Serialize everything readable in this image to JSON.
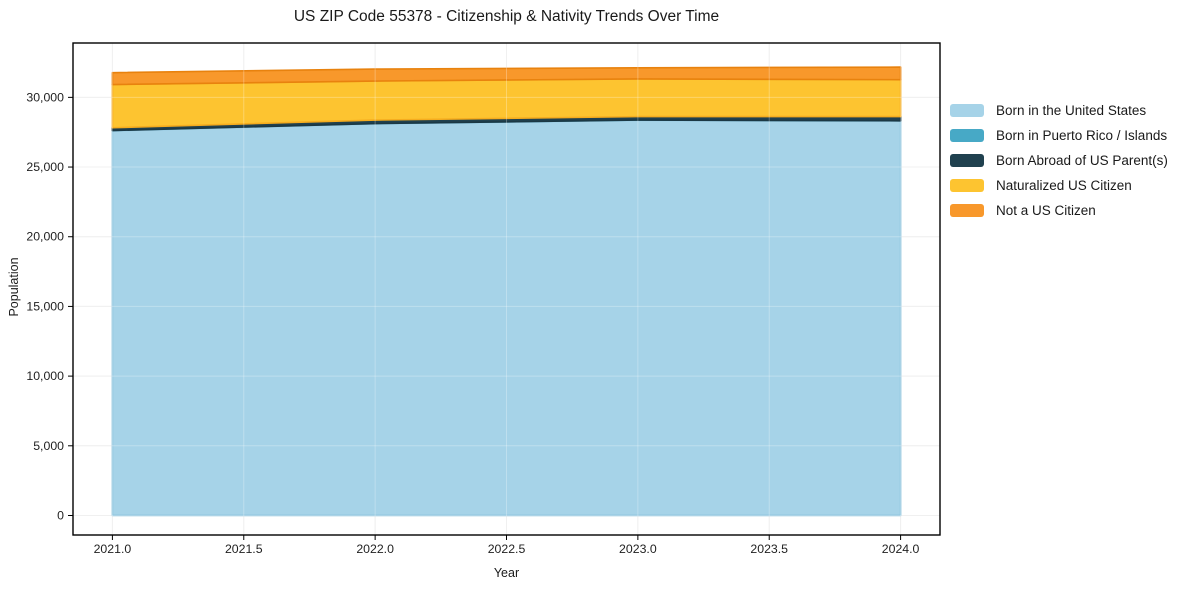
{
  "title": "US ZIP Code 55378 - Citizenship & Nativity Trends Over Time",
  "axes": {
    "xlabel": "Year",
    "ylabel": "Population"
  },
  "chart_data": {
    "type": "area",
    "stacked": true,
    "title": "US ZIP Code 55378 - Citizenship & Nativity Trends Over Time",
    "xlabel": "Year",
    "ylabel": "Population",
    "x": [
      2021,
      2022,
      2023,
      2024
    ],
    "series": [
      {
        "name": "Born in the United States",
        "color": "#a6d3e8",
        "edge_color": "#8cc3dd",
        "values": [
          27600,
          28100,
          28350,
          28300
        ]
      },
      {
        "name": "Born in Puerto Rico / Islands",
        "color": "#47a9c6",
        "edge_color": "#3f9cba",
        "values": [
          20,
          20,
          20,
          20
        ]
      },
      {
        "name": "Born Abroad of US Parent(s)",
        "color": "#20414f",
        "edge_color": "#1b3844",
        "values": [
          200,
          250,
          250,
          300
        ]
      },
      {
        "name": "Naturalized US Citizen",
        "color": "#fdc430",
        "edge_color": "#f5ac1e",
        "values": [
          3100,
          2800,
          2700,
          2650
        ]
      },
      {
        "name": "Not a US Citizen",
        "color": "#f8982b",
        "edge_color": "#e8820e",
        "values": [
          850,
          860,
          800,
          900
        ]
      }
    ],
    "x_ticks": {
      "values": [
        2021,
        2021.5,
        2022,
        2022.5,
        2023,
        2023.5,
        2024
      ],
      "labels": [
        "2021.0",
        "2021.5",
        "2022.0",
        "2022.5",
        "2023.0",
        "2023.5",
        "2024.0"
      ]
    },
    "y_ticks": {
      "values": [
        0,
        5000,
        10000,
        15000,
        20000,
        25000,
        30000
      ],
      "labels": [
        "0",
        "5,000",
        "10,000",
        "15,000",
        "20,000",
        "25,000",
        "30,000"
      ]
    },
    "xlim": [
      2020.85,
      2024.15
    ],
    "ylim": [
      -1400,
      33900
    ],
    "grid": true,
    "grid_color": "#eaeaea",
    "frame_color": "#000000",
    "legend_position": "right"
  }
}
